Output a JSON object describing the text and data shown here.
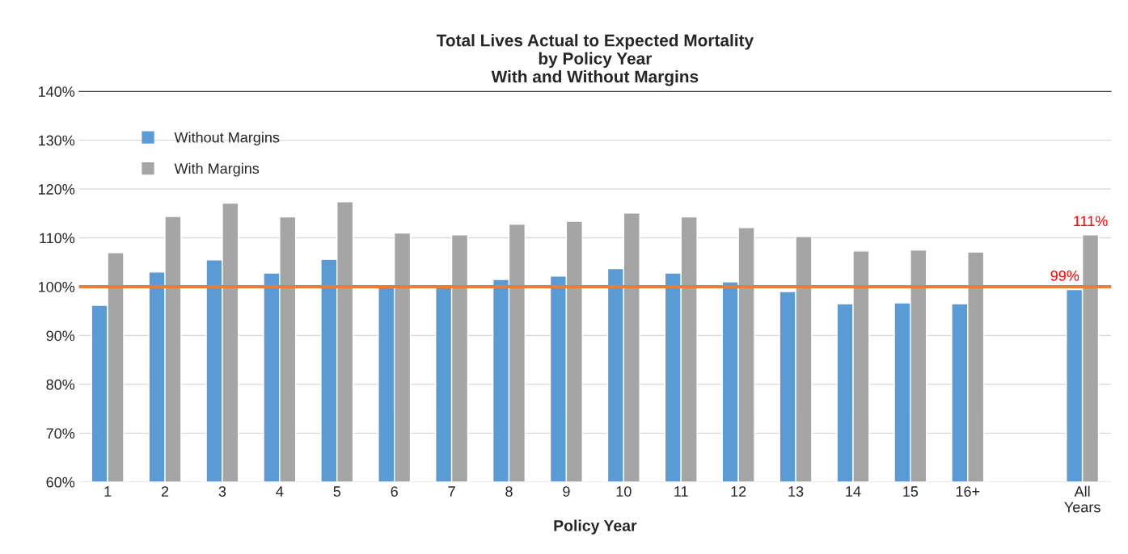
{
  "chart_data": {
    "type": "bar",
    "title": "Total Lives Actual to Expected Mortality\nby Policy Year\nWith and Without Margins",
    "xlabel": "Policy Year",
    "categories": [
      "1",
      "2",
      "3",
      "4",
      "5",
      "6",
      "7",
      "8",
      "9",
      "10",
      "11",
      "12",
      "13",
      "14",
      "15",
      "16+",
      null,
      "All\nYears"
    ],
    "series": [
      {
        "name": "Without Margins",
        "color": "#5b9bd5",
        "values": [
          96.2,
          103.0,
          105.5,
          102.8,
          105.6,
          99.8,
          99.8,
          101.5,
          102.2,
          103.7,
          102.8,
          101.0,
          99.0,
          96.5,
          96.7,
          96.5,
          null,
          99.4
        ],
        "value_labels": [
          null,
          null,
          null,
          null,
          null,
          null,
          null,
          null,
          null,
          null,
          null,
          null,
          null,
          null,
          null,
          null,
          null,
          "99%"
        ]
      },
      {
        "name": "With Margins",
        "color": "#a5a5a5",
        "values": [
          107.0,
          114.4,
          117.1,
          114.3,
          117.4,
          111.0,
          110.6,
          112.8,
          113.4,
          115.1,
          114.3,
          112.1,
          110.3,
          107.3,
          107.5,
          107.1,
          null,
          110.6
        ],
        "value_labels": [
          null,
          null,
          null,
          null,
          null,
          null,
          null,
          null,
          null,
          null,
          null,
          null,
          null,
          null,
          null,
          null,
          null,
          "111%"
        ]
      }
    ],
    "ylim": [
      60,
      140
    ],
    "yticks": [
      {
        "value": 60,
        "label": "60%"
      },
      {
        "value": 70,
        "label": "70%"
      },
      {
        "value": 80,
        "label": "80%"
      },
      {
        "value": 90,
        "label": "90%"
      },
      {
        "value": 100,
        "label": "100%"
      },
      {
        "value": 110,
        "label": "110%"
      },
      {
        "value": 120,
        "label": "120%"
      },
      {
        "value": 130,
        "label": "130%"
      },
      {
        "value": 140,
        "label": "140%"
      }
    ],
    "ref_lines": [
      {
        "axis": "y",
        "value": 100,
        "color": "#ed7d31"
      }
    ],
    "grid": "y",
    "legend": "top left"
  }
}
